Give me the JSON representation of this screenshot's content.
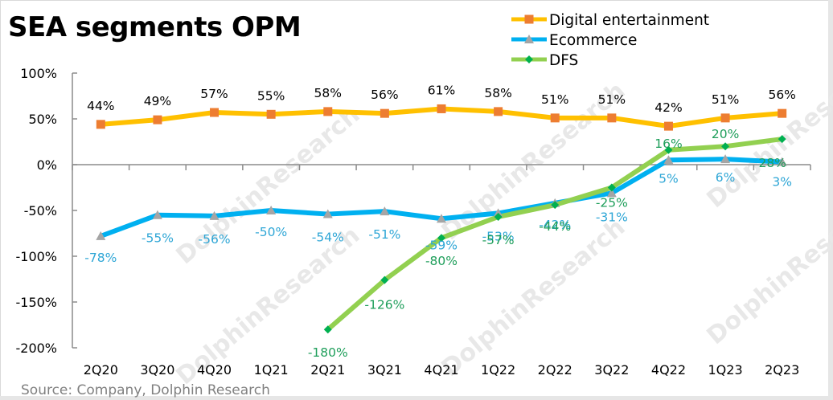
{
  "title": "SEA segments OPM",
  "source": "Source: Company, Dolphin Research",
  "watermark": "DolphinResearch",
  "chart_data": {
    "type": "line",
    "title": "SEA segments OPM",
    "xlabel": "",
    "ylabel": "",
    "categories": [
      "2Q20",
      "3Q20",
      "4Q20",
      "1Q21",
      "2Q21",
      "3Q21",
      "4Q21",
      "1Q22",
      "2Q22",
      "3Q22",
      "4Q22",
      "1Q23",
      "2Q23"
    ],
    "ylim": [
      -200,
      100
    ],
    "yticks": [
      100,
      50,
      0,
      -50,
      -100,
      -150,
      -200
    ],
    "ytick_labels": [
      "100%",
      "50%",
      "0%",
      "-50%",
      "-100%",
      "-150%",
      "-200%"
    ],
    "grid": false,
    "legend_position": "top-right",
    "series": [
      {
        "name": "Digital entertainment",
        "line_color": "#FFC000",
        "marker_color": "#ED7D31",
        "label_color": "#000000",
        "marker": "square",
        "values": [
          44,
          49,
          57,
          55,
          58,
          56,
          61,
          58,
          51,
          51,
          42,
          51,
          56
        ],
        "labels": [
          "44%",
          "49%",
          "57%",
          "55%",
          "58%",
          "56%",
          "61%",
          "58%",
          "51%",
          "51%",
          "42%",
          "51%",
          "56%"
        ]
      },
      {
        "name": "Ecommerce",
        "line_color": "#00B0F0",
        "marker_color": "#A5A5A5",
        "label_color": "#2EA6D6",
        "marker": "triangle",
        "values": [
          -78,
          -55,
          -56,
          -50,
          -54,
          -51,
          -59,
          -53,
          -42,
          -31,
          5,
          6,
          3
        ],
        "labels": [
          "-78%",
          "-55%",
          "-56%",
          "-50%",
          "-54%",
          "-51%",
          "-59%",
          "-53%",
          "-42%",
          "-31%",
          "5%",
          "6%",
          "3%"
        ]
      },
      {
        "name": "DFS",
        "line_color": "#92D050",
        "marker_color": "#00B050",
        "label_color": "#1E9E5A",
        "marker": "diamond",
        "values": [
          null,
          null,
          null,
          null,
          -180,
          -126,
          -80,
          -57,
          -44,
          -25,
          16,
          20,
          28
        ],
        "labels": [
          null,
          null,
          null,
          null,
          "-180%",
          "-126%",
          "-80%",
          "-57%",
          "-44%",
          "-25%",
          "16%",
          "20%",
          "28%"
        ]
      }
    ]
  }
}
